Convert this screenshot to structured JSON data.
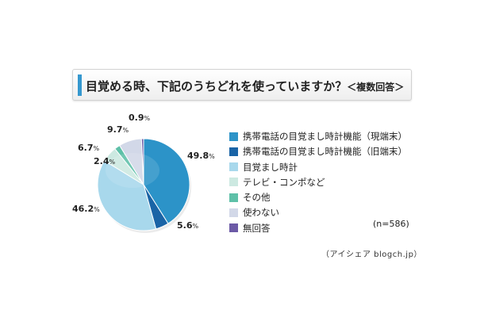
{
  "title": {
    "main": "目覚める時、下記のうちどれを使っていますか？",
    "sub": "＜複数回答＞"
  },
  "note": "(n=586)",
  "source": "（アイシェア blogch.jp）",
  "chart_data": {
    "type": "pie",
    "unit": "%",
    "categories": [
      "携帯電話の目覚まし時計機能（現端末）",
      "携帯電話の目覚まし時計機能（旧端末）",
      "目覚まし時計",
      "テレビ・コンポなど",
      "その他",
      "使わない",
      "無回答"
    ],
    "values": [
      49.8,
      5.6,
      46.2,
      6.7,
      2.4,
      9.7,
      0.9
    ],
    "value_labels": [
      "49.8",
      "5.6",
      "46.2",
      "6.7",
      "2.4",
      "9.7",
      "0.9"
    ],
    "colors": [
      "#2c93c8",
      "#1a64a6",
      "#a8d8ec",
      "#cce9e1",
      "#5ec0a8",
      "#d2d8e8",
      "#6c5aa6"
    ],
    "legend_position": "right"
  }
}
